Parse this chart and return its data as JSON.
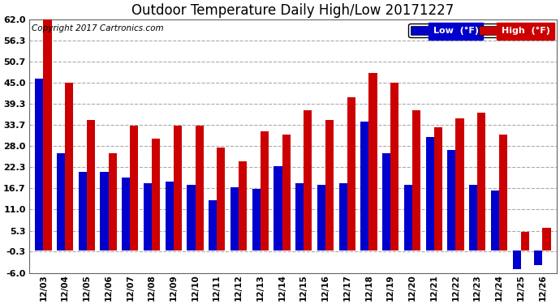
{
  "title": "Outdoor Temperature Daily High/Low 20171227",
  "copyright": "Copyright 2017 Cartronics.com",
  "legend_low": "Low  (°F)",
  "legend_high": "High  (°F)",
  "dates": [
    "12/03",
    "12/04",
    "12/05",
    "12/06",
    "12/07",
    "12/08",
    "12/09",
    "12/10",
    "12/11",
    "12/12",
    "12/13",
    "12/14",
    "12/15",
    "12/16",
    "12/17",
    "12/18",
    "12/19",
    "12/20",
    "12/21",
    "12/22",
    "12/23",
    "12/24",
    "12/25",
    "12/26"
  ],
  "highs": [
    62.0,
    45.0,
    35.0,
    26.0,
    33.5,
    30.0,
    33.5,
    33.5,
    27.5,
    24.0,
    32.0,
    31.0,
    37.5,
    35.0,
    41.0,
    47.5,
    45.0,
    37.5,
    33.0,
    35.5,
    37.0,
    31.0,
    5.0,
    6.0
  ],
  "lows": [
    46.0,
    26.0,
    21.0,
    21.0,
    19.5,
    18.0,
    18.5,
    17.5,
    13.5,
    17.0,
    16.5,
    22.5,
    18.0,
    17.5,
    18.0,
    34.5,
    26.0,
    17.5,
    30.5,
    27.0,
    17.5,
    16.0,
    -5.0,
    -4.0
  ],
  "ylim_min": -6.0,
  "ylim_max": 62.0,
  "yticks": [
    62.0,
    56.3,
    50.7,
    45.0,
    39.3,
    33.7,
    28.0,
    22.3,
    16.7,
    11.0,
    5.3,
    -0.3,
    -6.0
  ],
  "bar_width": 0.38,
  "low_color": "#0000cc",
  "high_color": "#cc0000",
  "bg_color": "#ffffff",
  "grid_color": "#aaaaaa",
  "title_fontsize": 12,
  "copyright_fontsize": 7.5
}
